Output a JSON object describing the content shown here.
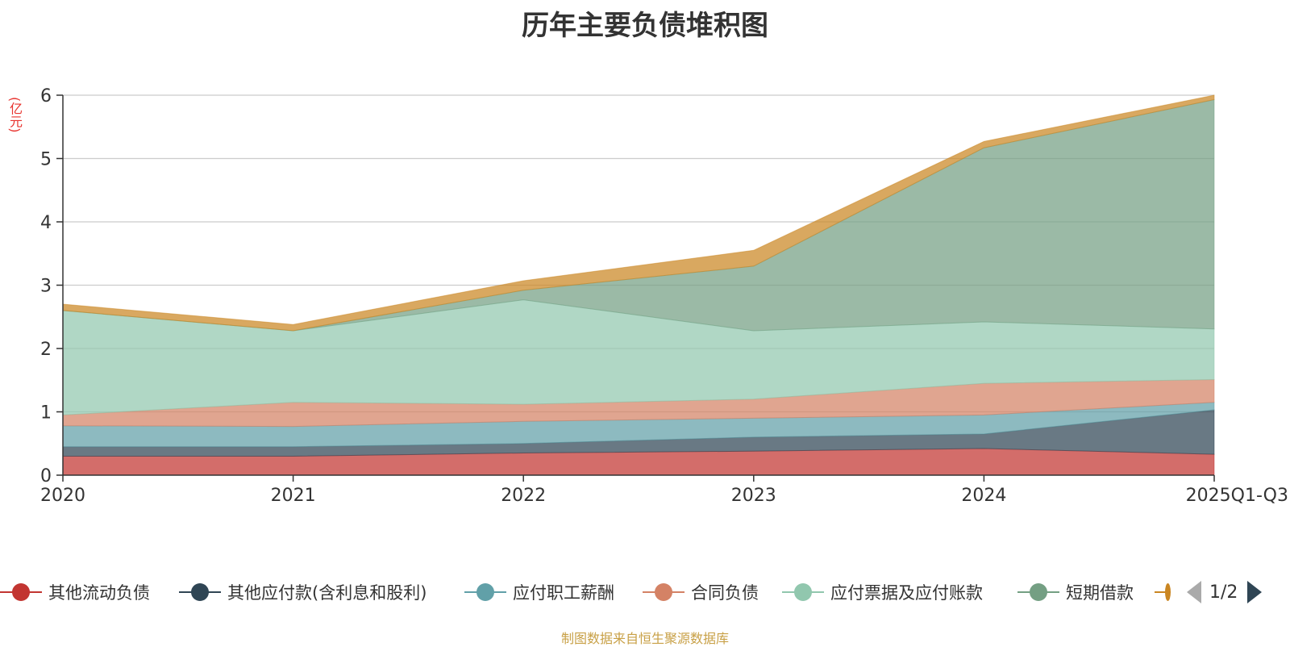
{
  "chart_data": {
    "type": "area",
    "stacked": true,
    "title": "历年主要负债堆积图",
    "unit_label": "(亿元)",
    "categories": [
      "2020",
      "2021",
      "2022",
      "2023",
      "2024",
      "2025Q1-Q3"
    ],
    "ylim": [
      0,
      6
    ],
    "yticks": [
      0,
      1,
      2,
      3,
      4,
      5,
      6
    ],
    "grid": true,
    "legend_position": "bottom",
    "series": [
      {
        "name": "其他流动负债",
        "color": "#c23531",
        "values": [
          0.3,
          0.3,
          0.35,
          0.38,
          0.42,
          0.33
        ]
      },
      {
        "name": "其他应付款(含利息和股利)",
        "color": "#2f4554",
        "values": [
          0.15,
          0.15,
          0.15,
          0.22,
          0.23,
          0.7
        ]
      },
      {
        "name": "应付职工薪酬",
        "color": "#61a0a8",
        "values": [
          0.33,
          0.32,
          0.35,
          0.3,
          0.3,
          0.12
        ]
      },
      {
        "name": "合同负债",
        "color": "#d48265",
        "values": [
          0.17,
          0.38,
          0.27,
          0.3,
          0.5,
          0.36
        ]
      },
      {
        "name": "应付票据及应付账款",
        "color": "#91c7ae",
        "values": [
          1.65,
          1.13,
          1.65,
          1.08,
          0.97,
          0.8
        ]
      },
      {
        "name": "短期借款",
        "color": "#749f83",
        "values": [
          0.0,
          0.0,
          0.15,
          1.02,
          2.75,
          3.62
        ]
      },
      {
        "name": "",
        "color": "#ca8622",
        "values": [
          0.1,
          0.1,
          0.15,
          0.25,
          0.1,
          0.07
        ]
      }
    ]
  },
  "legend": {
    "page_indicator": "1/2"
  },
  "footer": {
    "source": "制图数据来自恒生聚源数据库"
  }
}
